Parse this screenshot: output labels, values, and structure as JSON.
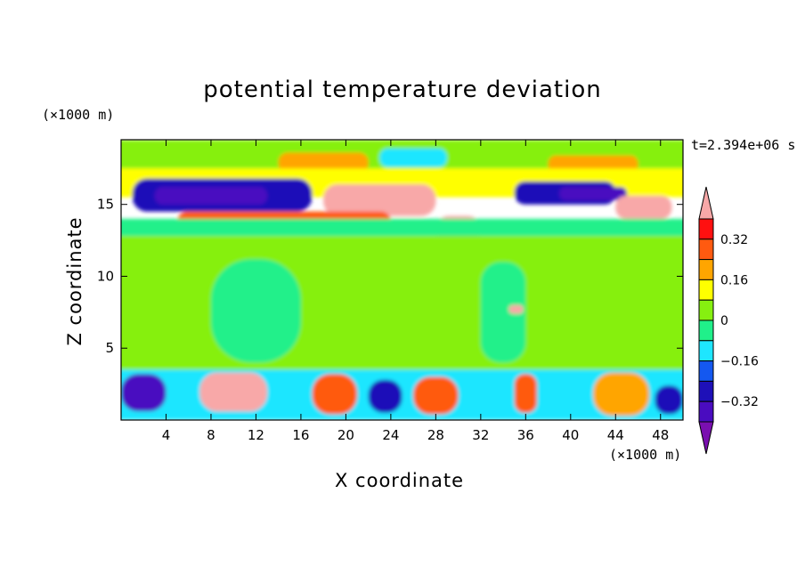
{
  "chart_data": {
    "type": "heatmap",
    "title": "potential temperature deviation",
    "xlabel": "X coordinate",
    "ylabel": "Z coordinate",
    "x_unit": "(×1000 m)",
    "y_unit": "(×1000 m)",
    "time_label": "t=2.394e+06 s",
    "xlim": [
      0,
      50
    ],
    "ylim": [
      0,
      19.5
    ],
    "x_ticks": [
      "4",
      "8",
      "12",
      "16",
      "20",
      "24",
      "28",
      "32",
      "36",
      "40",
      "44",
      "48"
    ],
    "y_ticks": [
      "5",
      "10",
      "15"
    ],
    "colorbar": {
      "levels": [
        -0.4,
        -0.32,
        -0.24,
        -0.16,
        -0.08,
        0,
        0.08,
        0.16,
        0.24,
        0.32,
        0.4
      ],
      "tick_labels": [
        "0.32",
        "0.16",
        "0",
        "−0.16",
        "−0.32"
      ],
      "colors": [
        "#7a0fb0",
        "#4a0cc0",
        "#1e10b8",
        "#1458f0",
        "#1ee6ff",
        "#20f08a",
        "#86f010",
        "#ffff00",
        "#ffa500",
        "#ff5a10",
        "#ff1010",
        "#f8a8a8"
      ]
    },
    "regions": [
      {
        "x": [
          0,
          50
        ],
        "z": [
          17.5,
          19.5
        ],
        "value": 0.05
      },
      {
        "x": [
          14,
          22
        ],
        "z": [
          17.2,
          18.6
        ],
        "value": 0.18
      },
      {
        "x": [
          23,
          29
        ],
        "z": [
          17.6,
          18.9
        ],
        "value": -0.12
      },
      {
        "x": [
          38,
          46
        ],
        "z": [
          17.2,
          18.4
        ],
        "value": 0.22
      },
      {
        "x": [
          0,
          50
        ],
        "z": [
          15.5,
          17.5
        ],
        "value": 0.1
      },
      {
        "x": [
          1,
          17
        ],
        "z": [
          14.5,
          16.8
        ],
        "value": -0.3
      },
      {
        "x": [
          3,
          13
        ],
        "z": [
          15.0,
          16.2
        ],
        "value": -0.38
      },
      {
        "x": [
          18,
          28
        ],
        "z": [
          14.2,
          16.4
        ],
        "value": 0.42
      },
      {
        "x": [
          35,
          44
        ],
        "z": [
          15.0,
          16.6
        ],
        "value": -0.32
      },
      {
        "x": [
          39,
          45
        ],
        "z": [
          15.3,
          16.2
        ],
        "value": -0.38
      },
      {
        "x": [
          44,
          49
        ],
        "z": [
          14.0,
          15.6
        ],
        "value": 0.42
      },
      {
        "x": [
          28,
          32
        ],
        "z": [
          12.2,
          14.2
        ],
        "value": 0.42
      },
      {
        "x": [
          5,
          24
        ],
        "z": [
          13.0,
          14.5
        ],
        "value": 0.3
      },
      {
        "x": [
          0,
          50
        ],
        "z": [
          12.8,
          14.0
        ],
        "value": -0.02
      },
      {
        "x": [
          0,
          50
        ],
        "z": [
          3.5,
          12.8
        ],
        "value": 0.05
      },
      {
        "x": [
          8,
          16
        ],
        "z": [
          4.0,
          11.2
        ],
        "value": -0.04
      },
      {
        "x": [
          32,
          36
        ],
        "z": [
          4.0,
          11.0
        ],
        "value": -0.04
      },
      {
        "x": [
          34.5,
          35.8
        ],
        "z": [
          7.4,
          8.0
        ],
        "value": 0.42
      },
      {
        "x": [
          0,
          50
        ],
        "z": [
          0,
          3.5
        ],
        "value": -0.1
      },
      {
        "x": [
          0,
          4
        ],
        "z": [
          0.6,
          3.2
        ],
        "value": -0.38
      },
      {
        "x": [
          7,
          13
        ],
        "z": [
          0.6,
          3.3
        ],
        "value": 0.42
      },
      {
        "x": [
          17,
          21
        ],
        "z": [
          0.4,
          3.2
        ],
        "value": 0.3
      },
      {
        "x": [
          22,
          25
        ],
        "z": [
          0.5,
          2.8
        ],
        "value": -0.32
      },
      {
        "x": [
          26,
          30
        ],
        "z": [
          0.4,
          3.0
        ],
        "value": 0.3
      },
      {
        "x": [
          35,
          37
        ],
        "z": [
          0.5,
          3.2
        ],
        "value": 0.3
      },
      {
        "x": [
          42,
          47
        ],
        "z": [
          0.3,
          3.3
        ],
        "value": 0.22
      },
      {
        "x": [
          47.5,
          50
        ],
        "z": [
          0.4,
          2.4
        ],
        "value": -0.32
      }
    ]
  }
}
